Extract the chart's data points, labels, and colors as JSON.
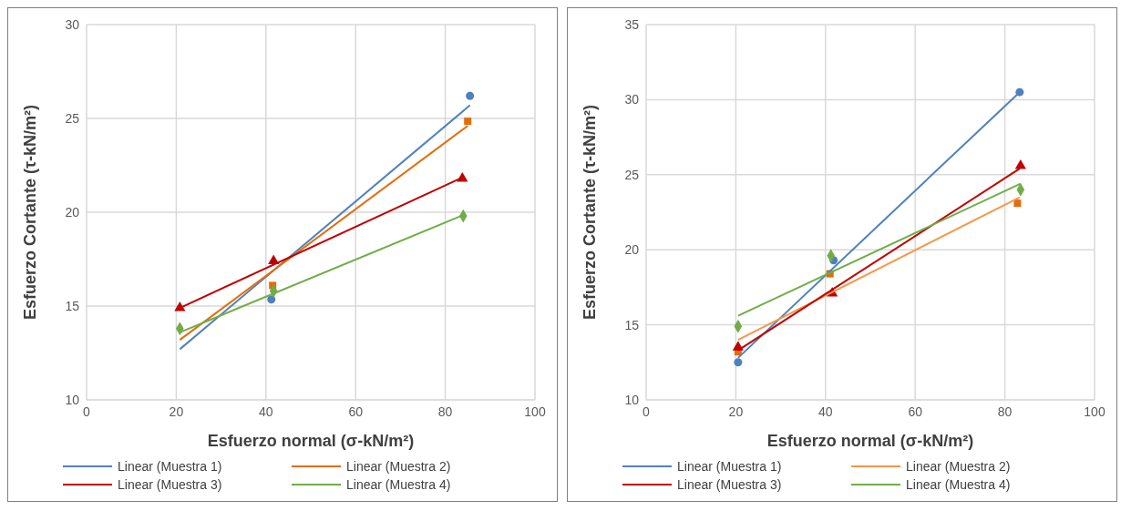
{
  "chart_data": [
    {
      "type": "scatter",
      "xlabel": "Esfuerzo normal   (σ-kN/m²)",
      "ylabel": "Esfuerzo Cortante  (τ-kN/m²)",
      "xlim": [
        0,
        100
      ],
      "xticks": [
        0,
        20,
        40,
        60,
        80,
        100
      ],
      "ylim": [
        10,
        30
      ],
      "yticks": [
        10,
        15,
        20,
        25,
        30
      ],
      "grid": true,
      "legend": "bottom",
      "series": [
        {
          "marker": "circle",
          "color": "#4f81bd",
          "x": [
            null,
            41.2,
            85.5
          ],
          "values": [
            null,
            15.35,
            26.2
          ]
        },
        {
          "marker": "square",
          "color": "#e46c0a",
          "x": [
            null,
            41.5,
            85
          ],
          "values": [
            null,
            16.1,
            24.85
          ]
        },
        {
          "marker": "triangle",
          "color": "#c00000",
          "x": [
            20.8,
            41.7,
            83.8
          ],
          "values": [
            14.9,
            17.4,
            21.8
          ]
        },
        {
          "marker": "diamond",
          "color": "#70ad47",
          "x": [
            20.8,
            41.7,
            84
          ],
          "values": [
            13.8,
            15.8,
            19.8
          ]
        },
        {
          "type": "line",
          "name": "Linear (Muestra 1)",
          "color": "#4f81bd",
          "x": [
            20.8,
            85.5
          ],
          "values": [
            12.7,
            25.7
          ]
        },
        {
          "type": "line",
          "name": "Linear (Muestra 2)",
          "color": "#e46c0a",
          "x": [
            20.8,
            85
          ],
          "values": [
            13.2,
            24.6
          ]
        },
        {
          "type": "line",
          "name": "Linear (Muestra 3)",
          "color": "#c00000",
          "x": [
            20.8,
            83.8
          ],
          "values": [
            14.9,
            21.85
          ]
        },
        {
          "type": "line",
          "name": "Linear (Muestra 4)",
          "color": "#70ad47",
          "x": [
            20.8,
            84
          ],
          "values": [
            13.6,
            19.85
          ]
        }
      ]
    },
    {
      "type": "scatter",
      "xlabel": "Esfuerzo normal   (σ-kN/m²)",
      "ylabel": "Esfuerzo Cortante  (τ-kN/m²)",
      "xlim": [
        0,
        100
      ],
      "xticks": [
        0,
        20,
        40,
        60,
        80,
        100
      ],
      "ylim": [
        10,
        35
      ],
      "yticks": [
        10,
        15,
        20,
        25,
        30,
        35
      ],
      "grid": true,
      "legend": "bottom",
      "series": [
        {
          "marker": "circle",
          "color": "#4f81bd",
          "x": [
            20.5,
            41.8,
            83.3
          ],
          "values": [
            12.5,
            19.3,
            30.5
          ]
        },
        {
          "marker": "square",
          "color": "#e46c0a",
          "x": [
            20.5,
            41,
            82.8
          ],
          "values": [
            13.2,
            18.4,
            23.1
          ]
        },
        {
          "marker": "triangle",
          "color": "#c00000",
          "x": [
            20.5,
            41.5,
            83.5
          ],
          "values": [
            13.5,
            17.1,
            25.6
          ]
        },
        {
          "marker": "diamond",
          "color": "#70ad47",
          "x": [
            20.5,
            41.2,
            83.5
          ],
          "values": [
            14.9,
            19.6,
            24
          ]
        },
        {
          "type": "line",
          "name": "Linear (Muestra 1)",
          "color": "#4f81bd",
          "x": [
            20.5,
            83.3
          ],
          "values": [
            12.8,
            30.5
          ]
        },
        {
          "type": "line",
          "name": "Linear (Muestra 2)",
          "color": "#f79646",
          "x": [
            20.5,
            83.3
          ],
          "values": [
            14,
            23.5
          ]
        },
        {
          "type": "line",
          "name": "Linear (Muestra 3)",
          "color": "#c00000",
          "x": [
            20.5,
            83.3
          ],
          "values": [
            13.3,
            25.4
          ]
        },
        {
          "type": "line",
          "name": "Linear (Muestra 4)",
          "color": "#70ad47",
          "x": [
            20.5,
            83.5
          ],
          "values": [
            15.6,
            24.4
          ]
        }
      ]
    }
  ]
}
